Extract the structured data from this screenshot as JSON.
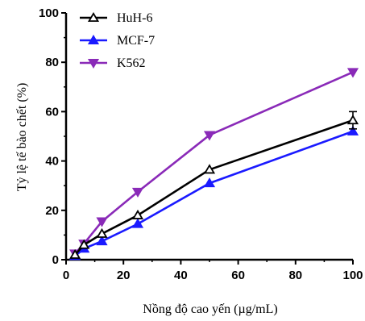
{
  "chart_data": {
    "type": "line",
    "xlabel": "Nồng độ cao yến (µg/mL)",
    "ylabel": "Tỷ lệ tế bào chết (%)",
    "xlim": [
      0,
      100
    ],
    "ylim": [
      0,
      100
    ],
    "xticks": [
      0,
      20,
      40,
      60,
      80,
      100
    ],
    "yticks": [
      0,
      20,
      40,
      60,
      80,
      100
    ],
    "x": [
      3.125,
      6.25,
      12.5,
      25,
      50,
      100
    ],
    "legend_position": "top-left",
    "grid": false,
    "series": [
      {
        "name": "HuH-6",
        "values": [
          2,
          6,
          10.5,
          18,
          36.5,
          56.5
        ],
        "error": [
          0,
          0,
          0,
          0,
          0,
          3.5
        ],
        "color": "#000000",
        "marker": "triangle-up-open"
      },
      {
        "name": "MCF-7",
        "values": [
          1.5,
          4.5,
          7.5,
          14.5,
          31,
          52
        ],
        "error": [
          0,
          0,
          0,
          0,
          0,
          0
        ],
        "color": "#1a1aff",
        "marker": "triangle-up-filled"
      },
      {
        "name": "K562",
        "values": [
          2.5,
          6.5,
          15.5,
          27.5,
          50.5,
          76
        ],
        "error": [
          0,
          0,
          0,
          0,
          0,
          0
        ],
        "color": "#8a2ab8",
        "marker": "triangle-down-filled"
      }
    ]
  }
}
